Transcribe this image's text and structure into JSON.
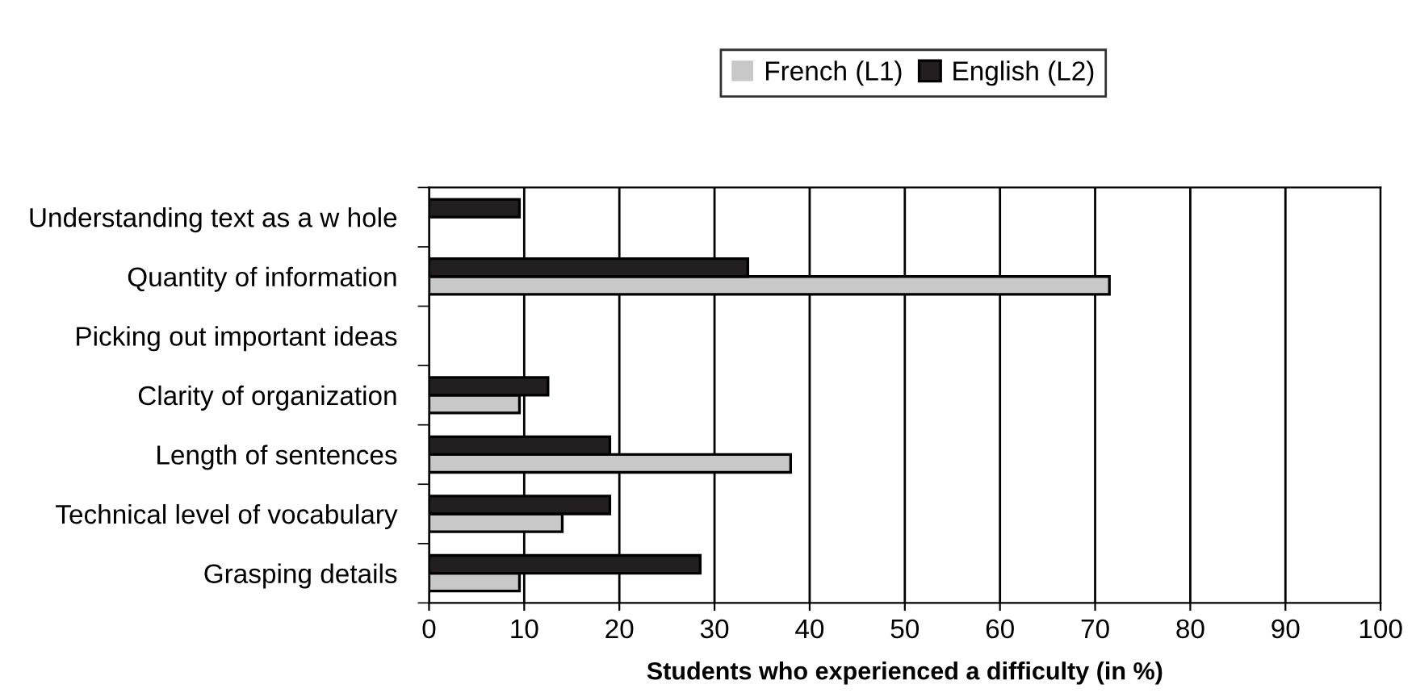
{
  "chart_data": {
    "type": "bar",
    "orientation": "horizontal",
    "xlabel": "Students who experienced a difficulty (in %)",
    "categories": [
      "Understanding text as a w hole",
      "Quantity of information",
      "Picking out important ideas",
      "Clarity of organization",
      "Length of sentences",
      "Technical level of vocabulary",
      "Grasping details"
    ],
    "series": [
      {
        "name": "French (L1)",
        "color": "#c8c8c8",
        "values": [
          0,
          71.5,
          0,
          9.5,
          38,
          14,
          9.5
        ]
      },
      {
        "name": "English (L2)",
        "color": "#231f20",
        "values": [
          9.5,
          33.5,
          0,
          12.5,
          19,
          19,
          28.5
        ]
      }
    ],
    "xlim": [
      0,
      100
    ],
    "xticks": [
      0,
      10,
      20,
      30,
      40,
      50,
      60,
      70,
      80,
      90,
      100
    ],
    "grid": "x",
    "legend": "top"
  }
}
